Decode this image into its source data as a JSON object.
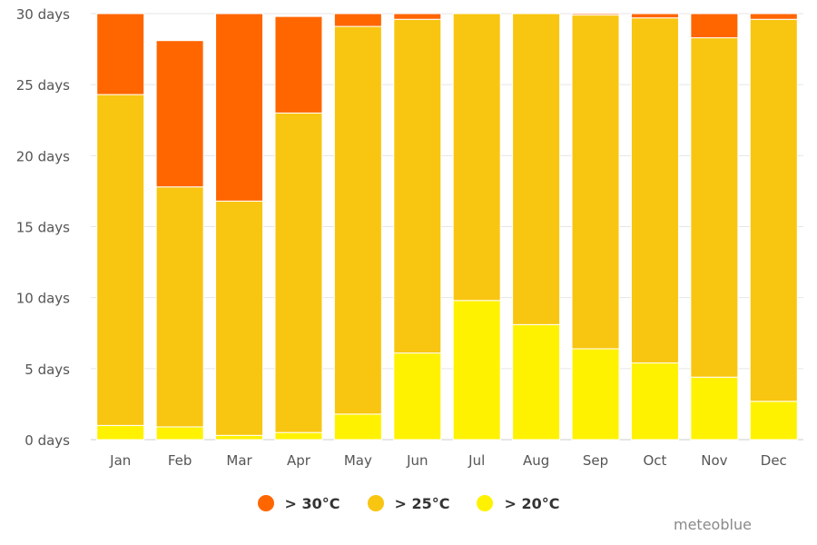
{
  "chart_data": {
    "type": "bar",
    "stacked": true,
    "categories": [
      "Jan",
      "Feb",
      "Mar",
      "Apr",
      "May",
      "Jun",
      "Jul",
      "Aug",
      "Sep",
      "Oct",
      "Nov",
      "Dec"
    ],
    "series": [
      {
        "name": "> 20°C",
        "color": "#FFF200",
        "values": [
          1.0,
          0.9,
          0.3,
          0.5,
          1.8,
          6.1,
          9.8,
          8.1,
          6.4,
          5.4,
          4.4,
          2.7
        ]
      },
      {
        "name": "> 25°C",
        "color": "#F8C511",
        "values": [
          23.3,
          16.9,
          16.5,
          22.5,
          27.3,
          23.5,
          20.2,
          21.9,
          23.5,
          24.3,
          23.9,
          26.9
        ]
      },
      {
        "name": "> 30°C",
        "color": "#FF6600",
        "values": [
          5.7,
          10.3,
          13.2,
          6.8,
          0.9,
          0.4,
          0.0,
          0.0,
          0.1,
          0.3,
          1.7,
          0.4
        ]
      }
    ],
    "y_ticks": [
      0,
      5,
      10,
      15,
      20,
      25,
      30
    ],
    "y_tick_suffix": " days",
    "ylim": [
      0,
      30
    ],
    "grid": true,
    "legend_position": "bottom-center",
    "legend_order": [
      2,
      1,
      0
    ]
  },
  "watermark": "meteoblue"
}
